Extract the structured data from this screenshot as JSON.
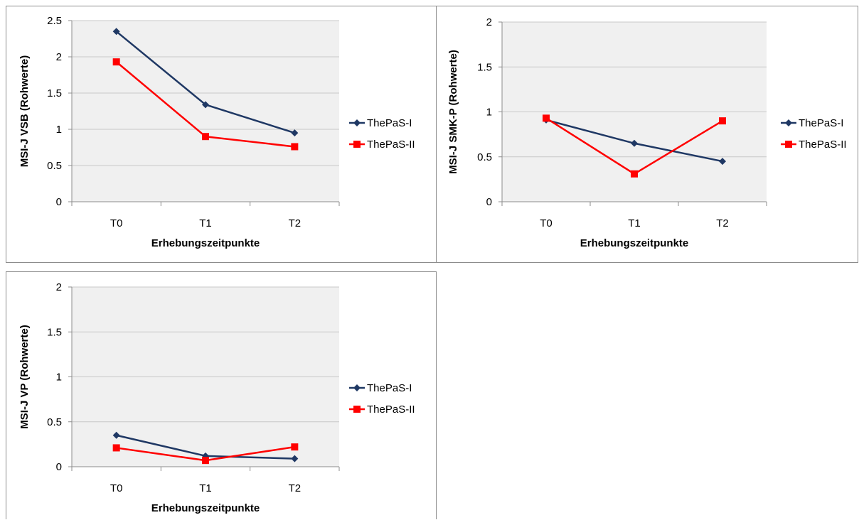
{
  "colors": {
    "series1": "#1f3864",
    "series2": "#ff0000",
    "plot_bg": "#f0f0f0",
    "grid": "#c8c8c8"
  },
  "chart_data": [
    {
      "type": "line",
      "categories": [
        "T0",
        "T1",
        "T2"
      ],
      "xlabel": "Erhebungszeitpunkte",
      "ylabel": "MSI-J VSB  (Rohwerte)",
      "ylim": [
        0,
        2.5
      ],
      "yticks": [
        "0",
        "0.5",
        "1",
        "1.5",
        "2",
        "2.5"
      ],
      "grid": true,
      "legend": "right",
      "series": [
        {
          "name": "ThePaS-I",
          "marker": "diamond",
          "values": [
            2.35,
            1.34,
            0.95
          ]
        },
        {
          "name": "ThePaS-II",
          "marker": "square",
          "values": [
            1.93,
            0.9,
            0.76
          ]
        }
      ]
    },
    {
      "type": "line",
      "categories": [
        "T0",
        "T1",
        "T2"
      ],
      "xlabel": "Erhebungszeitpunkte",
      "ylabel": "MSI-J SMK-P  (Rohwerte)",
      "ylim": [
        0,
        2
      ],
      "yticks": [
        "0",
        "0.5",
        "1",
        "1.5",
        "2"
      ],
      "grid": true,
      "legend": "right",
      "series": [
        {
          "name": "ThePaS-I",
          "marker": "diamond",
          "values": [
            0.91,
            0.65,
            0.45
          ]
        },
        {
          "name": "ThePaS-II",
          "marker": "square",
          "values": [
            0.93,
            0.31,
            0.9
          ]
        }
      ]
    },
    {
      "type": "line",
      "categories": [
        "T0",
        "T1",
        "T2"
      ],
      "xlabel": "Erhebungszeitpunkte",
      "ylabel": "MSI-J VP  (Rohwerte)",
      "ylim": [
        0,
        2
      ],
      "yticks": [
        "0",
        "0.5",
        "1",
        "1.5",
        "2"
      ],
      "grid": true,
      "legend": "right",
      "series": [
        {
          "name": "ThePaS-I",
          "marker": "diamond",
          "values": [
            0.35,
            0.12,
            0.09
          ]
        },
        {
          "name": "ThePaS-II",
          "marker": "square",
          "values": [
            0.21,
            0.07,
            0.22
          ]
        }
      ]
    }
  ]
}
